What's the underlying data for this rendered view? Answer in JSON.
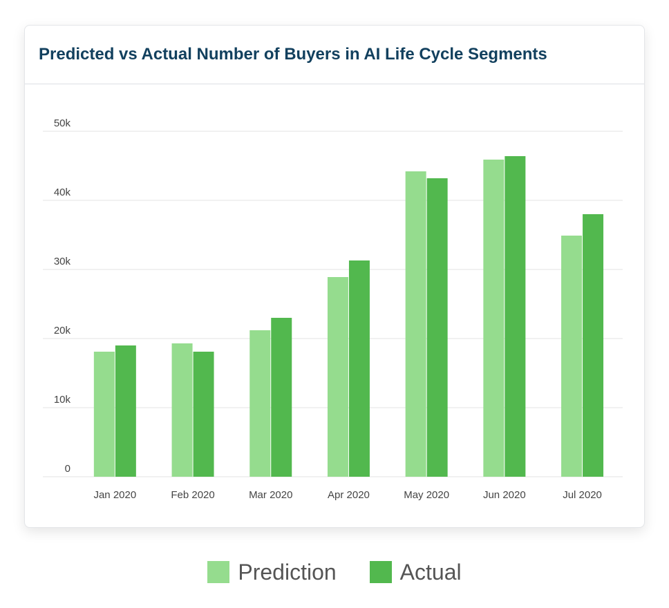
{
  "colors": {
    "prediction": "#95dc8e",
    "actual": "#52b84e",
    "grid": "#e3e3e3",
    "axis_text": "#444444",
    "title": "#12405e"
  },
  "chart_data": {
    "type": "bar",
    "title": "Predicted vs Actual Number of Buyers in AI Life Cycle Segments",
    "xlabel": "",
    "ylabel": "",
    "categories": [
      "Jan 2020",
      "Feb 2020",
      "Mar 2020",
      "Apr 2020",
      "May 2020",
      "Jun 2020",
      "Jul 2020"
    ],
    "series": [
      {
        "name": "Prediction",
        "values": [
          18100,
          19300,
          21200,
          28900,
          44200,
          45900,
          34900
        ]
      },
      {
        "name": "Actual",
        "values": [
          19000,
          18100,
          23000,
          31300,
          43200,
          46400,
          38000
        ]
      }
    ],
    "ylim": [
      0,
      50000
    ],
    "y_ticks": [
      0,
      10000,
      20000,
      30000,
      40000,
      50000
    ],
    "y_tick_labels": [
      "0",
      "10k",
      "20k",
      "30k",
      "40k",
      "50k"
    ],
    "grid": true,
    "legend": "bottom-center"
  }
}
